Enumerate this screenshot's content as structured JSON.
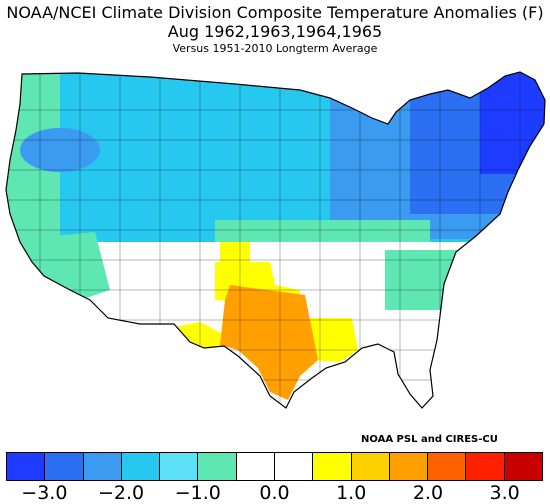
{
  "title": {
    "line1": "NOAA/NCEI Climate Division Composite Temperature Anomalies (F)",
    "line2": "Aug   1962,1963,1964,1965",
    "line3": "Versus 1951-2010 Longterm Average"
  },
  "credit": "NOAA PSL and CIRES-CU",
  "colorbar": {
    "colors": [
      "#1e3cff",
      "#2b6ff2",
      "#3a9bf0",
      "#27c8f0",
      "#5be0f8",
      "#5ee6b3",
      "#ffffff",
      "#ffffff",
      "#ffff00",
      "#ffd000",
      "#ffa000",
      "#ff6000",
      "#ff2000",
      "#c80000"
    ],
    "tick_labels": [
      "-3.0",
      "-2.0",
      "-1.0",
      "0.0",
      "1.0",
      "2.0",
      "3.0"
    ]
  },
  "legend_colors": {
    "deep_cold": "#1e3cff",
    "cold": "#2b6ff2",
    "cool": "#3a9bf0",
    "light_cool": "#27c8f0",
    "slight_cool": "#5ee6b3",
    "neutral": "#ffffff",
    "warm": "#ffff00",
    "hot": "#ffa000"
  }
}
